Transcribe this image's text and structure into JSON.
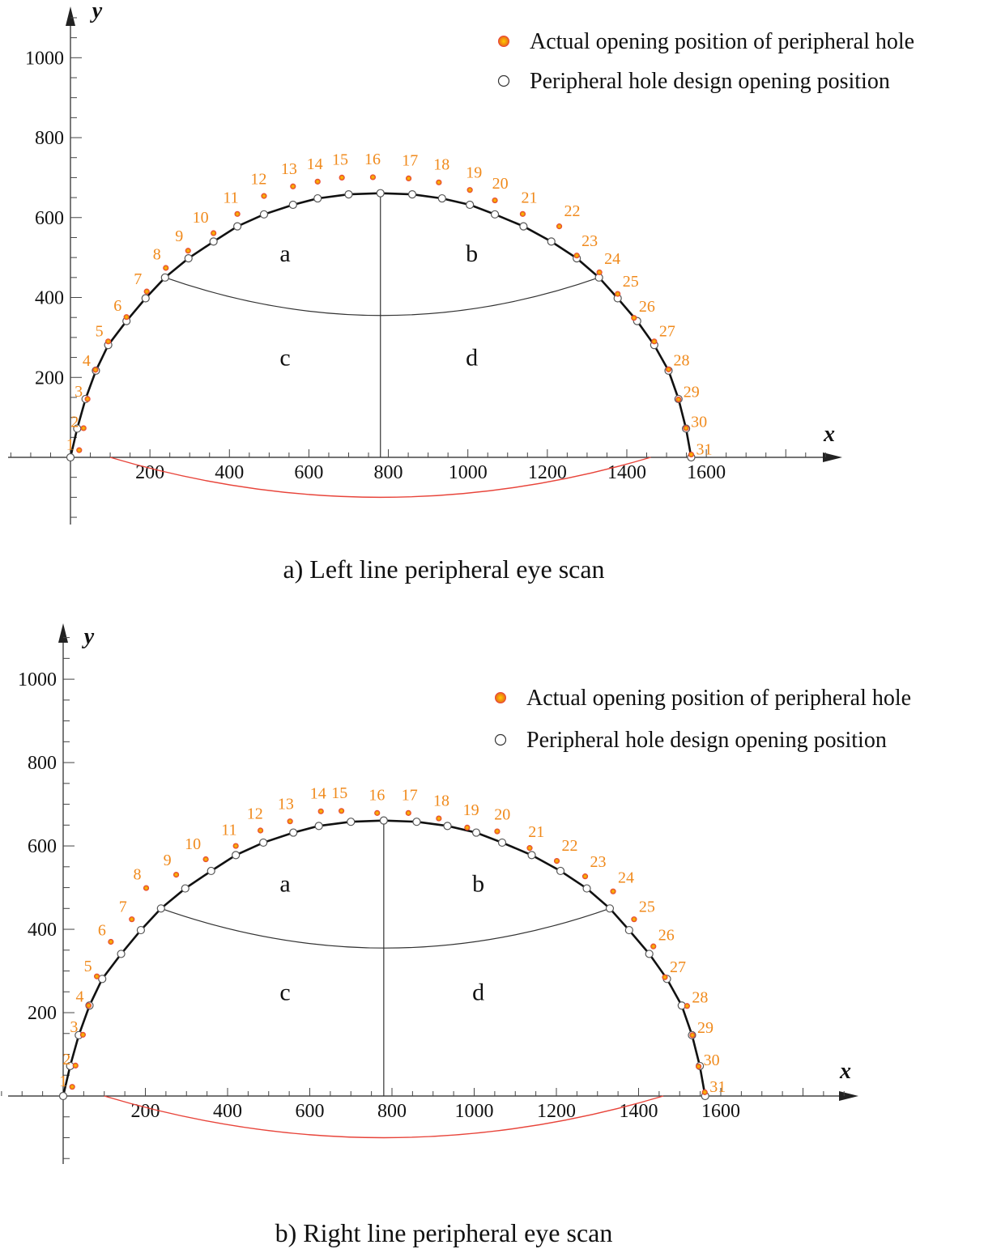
{
  "chart_data": [
    {
      "type": "scatter",
      "caption": "a) Left line peripheral eye scan",
      "xlabel": "x",
      "ylabel": "y",
      "x_ticks": [
        200,
        400,
        600,
        800,
        1000,
        1200,
        1400,
        1600
      ],
      "y_ticks": [
        200,
        400,
        600,
        800,
        1000
      ],
      "xlim": [
        -150,
        1930
      ],
      "ylim": [
        -170,
        1130
      ],
      "legend_position": "top-right",
      "region_labels": [
        "a",
        "b",
        "c",
        "d"
      ],
      "series": [
        {
          "name": "Actual opening position of peripheral hole",
          "color": "#f08a1c",
          "labels": [
            "1",
            "2",
            "3",
            "4",
            "5",
            "6",
            "7",
            "8",
            "9",
            "10",
            "11",
            "12",
            "13",
            "14",
            "15",
            "16",
            "17",
            "18",
            "19",
            "20",
            "21",
            "22",
            "23",
            "24",
            "25",
            "26",
            "27",
            "28",
            "29",
            "30",
            "31"
          ],
          "x": [
            22,
            33,
            43,
            63,
            95,
            141,
            192,
            240,
            296,
            360,
            420,
            487,
            560,
            622,
            683,
            761,
            851,
            927,
            1005,
            1068,
            1138,
            1230,
            1274,
            1331,
            1377,
            1418,
            1469,
            1505,
            1530,
            1549,
            1562
          ],
          "y": [
            18,
            73,
            146,
            219,
            290,
            351,
            415,
            474,
            517,
            561,
            609,
            654,
            678,
            690,
            700,
            701,
            698,
            688,
            669,
            643,
            609,
            578,
            505,
            463,
            409,
            349,
            290,
            220,
            145,
            73,
            7
          ]
        },
        {
          "name": "Peripheral hole design opening position",
          "color": "#555555",
          "x": [
            0,
            17,
            38,
            64,
            95,
            141,
            189,
            238,
            297,
            360,
            420,
            487,
            560,
            622,
            700,
            780,
            860,
            935,
            1005,
            1068,
            1140,
            1210,
            1274,
            1330,
            1377,
            1426,
            1469,
            1505,
            1530,
            1549,
            1562
          ],
          "y": [
            0,
            72,
            146,
            217,
            281,
            341,
            398,
            450,
            498,
            540,
            578,
            608,
            632,
            648,
            658,
            661,
            658,
            648,
            632,
            608,
            578,
            540,
            498,
            450,
            398,
            341,
            281,
            217,
            146,
            72,
            0
          ]
        }
      ]
    },
    {
      "type": "scatter",
      "caption": "b) Right line peripheral eye scan",
      "xlabel": "x",
      "ylabel": "y",
      "x_ticks": [
        200,
        400,
        600,
        800,
        1000,
        1200,
        1400,
        1600
      ],
      "y_ticks": [
        200,
        400,
        600,
        800,
        1000
      ],
      "xlim": [
        -150,
        1930
      ],
      "ylim": [
        -170,
        1130
      ],
      "legend_position": "top-right",
      "region_labels": [
        "a",
        "b",
        "c",
        "d"
      ],
      "series": [
        {
          "name": "Actual opening position of peripheral hole",
          "color": "#f08a1c",
          "labels": [
            "1",
            "2",
            "3",
            "4",
            "5",
            "6",
            "7",
            "8",
            "9",
            "10",
            "11",
            "12",
            "13",
            "14",
            "15",
            "16",
            "17",
            "18",
            "19",
            "20",
            "21",
            "22",
            "23",
            "24",
            "25",
            "26",
            "27",
            "28",
            "29",
            "30",
            "31"
          ],
          "x": [
            22,
            30,
            48,
            62,
            82,
            116,
            167,
            202,
            275,
            347,
            420,
            480,
            552,
            627,
            677,
            764,
            840,
            914,
            983,
            1056,
            1135,
            1201,
            1270,
            1338,
            1389,
            1436,
            1464,
            1518,
            1531,
            1546,
            1561
          ],
          "y": [
            22,
            73,
            147,
            217,
            287,
            370,
            424,
            499,
            531,
            568,
            600,
            637,
            659,
            683,
            684,
            679,
            679,
            666,
            644,
            635,
            595,
            564,
            527,
            491,
            424,
            359,
            285,
            216,
            146,
            71,
            9
          ]
        },
        {
          "name": "Peripheral hole design opening position",
          "color": "#555555",
          "x": [
            0,
            17,
            38,
            64,
            95,
            141,
            189,
            238,
            297,
            360,
            420,
            487,
            560,
            622,
            700,
            780,
            860,
            935,
            1005,
            1068,
            1140,
            1210,
            1274,
            1330,
            1377,
            1426,
            1469,
            1505,
            1530,
            1549,
            1562
          ],
          "y": [
            0,
            72,
            146,
            217,
            281,
            341,
            398,
            450,
            498,
            540,
            578,
            608,
            632,
            648,
            658,
            661,
            658,
            648,
            632,
            608,
            578,
            540,
            498,
            450,
            398,
            341,
            281,
            217,
            146,
            72,
            0
          ]
        }
      ]
    }
  ]
}
